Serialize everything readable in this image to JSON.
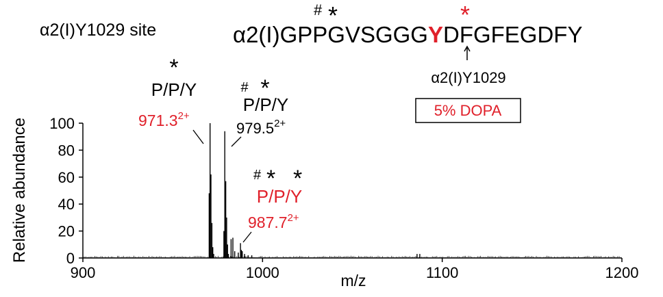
{
  "site_label": "α2(I)Y1029 site",
  "sequence": {
    "prefix": "α2(I)G",
    "letters_before": "PPGVSGGG",
    "highlight_letter": "Y",
    "suffix": "DFGFEGDFY",
    "hash_mark": "#",
    "star_black": "*",
    "star_red": "*",
    "arrow_label": "α2(I)Y1029",
    "box_label": "5% DOPA"
  },
  "peaks": [
    {
      "marks": "*",
      "label": "P/P/Y",
      "mz": "971.3",
      "charge": "2+",
      "label_color": "#000000",
      "mz_color": "#e0202a"
    },
    {
      "marks": "# *",
      "label": "P/P/Y",
      "mz": "979.5",
      "charge": "2+",
      "label_color": "#000000",
      "mz_color": "#000000"
    },
    {
      "marks": "# * *",
      "label": "P/P/Y",
      "mz": "987.7",
      "charge": "2+",
      "label_color": "#e0202a",
      "mz_color": "#e0202a"
    }
  ],
  "colors": {
    "accent_red": "#e0202a",
    "text": "#000000"
  },
  "chart_data": {
    "type": "bar",
    "xlabel": "m/z",
    "ylabel": "Relative abundance",
    "xlim": [
      900,
      1200
    ],
    "ylim": [
      0,
      100
    ],
    "xticks": [
      900,
      1000,
      1100,
      1200
    ],
    "yticks": [
      0,
      20,
      40,
      60,
      80,
      100
    ],
    "grid": false,
    "x": [
      970.3,
      970.8,
      971.3,
      971.8,
      972.3,
      972.8,
      978.5,
      979.0,
      979.5,
      980.0,
      980.5,
      981.0,
      982.5,
      983.5,
      984.5,
      986.5,
      987.7,
      988.2,
      988.7,
      990.0,
      992.0,
      994.0,
      1086.0,
      1087.5
    ],
    "values": [
      48,
      100,
      62,
      26,
      8,
      3,
      20,
      94,
      57,
      30,
      10,
      3,
      14,
      15,
      5,
      4,
      11,
      6,
      5,
      3,
      2,
      2,
      3,
      3
    ]
  }
}
